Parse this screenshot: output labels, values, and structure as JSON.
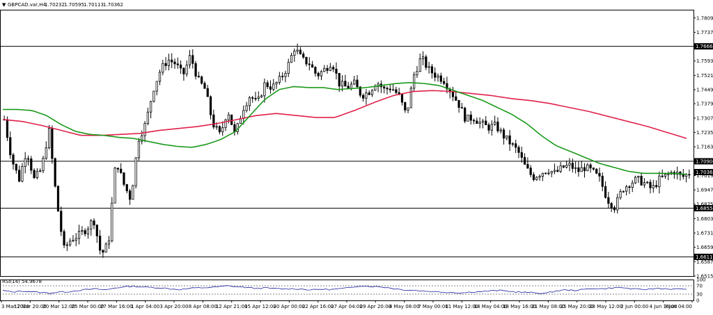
{
  "header": {
    "symbol_label": "GBPCAD.var,H4",
    "open": "1.70232",
    "high": "1.70595",
    "low": "1.70113",
    "close": "1.70362"
  },
  "colors": {
    "candle": "#000000",
    "ma_fast": "#1a9a1a",
    "ma_slow": "#e0204a",
    "hline": "#000000",
    "rsi_line": "#1c1c9c",
    "rsi_level": "#555555"
  },
  "chart_data": {
    "type": "candlestick",
    "y_ticks": [
      "1.78090",
      "1.77370",
      "1.75930",
      "1.75210",
      "1.74490",
      "1.73790",
      "1.73070",
      "1.72350",
      "1.71630",
      "1.70190",
      "1.69470",
      "1.68750",
      "1.68030",
      "1.67310",
      "1.66590",
      "1.65870",
      "1.65150"
    ],
    "ylim": [
      1.6515,
      1.785
    ],
    "x_ticks": [
      "3 Mar 2020",
      "17 Mar 20:00",
      "20 Mar 12:00",
      "25 Mar 00:00",
      "27 Mar 16:00",
      "1 Apr 04:00",
      "3 Apr 20:00",
      "8 Apr 08:00",
      "12 Apr 21:00",
      "15 Apr 12:00",
      "20 Apr 00:00",
      "22 Apr 16:00",
      "27 Apr 04:00",
      "29 Apr 20:00",
      "4 May 08:00",
      "7 May 00:00",
      "11 May 12:00",
      "14 May 04:00",
      "18 May 16:00",
      "21 May 08:00",
      "25 May 20:00",
      "28 May 12:00",
      "2 Jun 00:00",
      "4 Jun 16:00",
      "9 Jun 04:00"
    ],
    "horizontal_levels": [
      {
        "label": "1.76665",
        "value": 1.76665
      },
      {
        "label": "1.70904",
        "value": 1.70904
      },
      {
        "label": "1.68552",
        "value": 1.68552
      },
      {
        "label": "1.66113",
        "value": 1.66113
      }
    ],
    "current_price": {
      "label": "1.70362",
      "value": 1.70362
    },
    "price_path": [
      1.73,
      1.71,
      1.7,
      1.715,
      1.7,
      1.705,
      1.725,
      1.69,
      1.665,
      1.67,
      1.672,
      1.675,
      1.68,
      1.662,
      1.668,
      1.71,
      1.698,
      1.69,
      1.72,
      1.728,
      1.745,
      1.755,
      1.76,
      1.758,
      1.752,
      1.762,
      1.75,
      1.745,
      1.728,
      1.722,
      1.735,
      1.722,
      1.735,
      1.742,
      1.738,
      1.748,
      1.746,
      1.75,
      1.756,
      1.766,
      1.76,
      1.758,
      1.752,
      1.755,
      1.759,
      1.748,
      1.746,
      1.748,
      1.742,
      1.744,
      1.749,
      1.745,
      1.746,
      1.742,
      1.732,
      1.752,
      1.761,
      1.755,
      1.752,
      1.75,
      1.744,
      1.738,
      1.73,
      1.731,
      1.728,
      1.726,
      1.727,
      1.722,
      1.718,
      1.714,
      1.706,
      1.701,
      1.703,
      1.705,
      1.703,
      1.706,
      1.707,
      1.704,
      1.706,
      1.704,
      1.7,
      1.69,
      1.686,
      1.695,
      1.698,
      1.7,
      1.698,
      1.695,
      1.7,
      1.702,
      1.704,
      1.701,
      1.703
    ],
    "ma_fast_path": [
      1.735,
      1.735,
      1.7345,
      1.732,
      1.7275,
      1.724,
      1.7225,
      1.722,
      1.721,
      1.7205,
      1.719,
      1.7175,
      1.7165,
      1.716,
      1.7175,
      1.72,
      1.724,
      1.732,
      1.74,
      1.745,
      1.7465,
      1.746,
      1.746,
      1.745,
      1.7455,
      1.746,
      1.747,
      1.748,
      1.7485,
      1.748,
      1.747,
      1.7445,
      1.742,
      1.7395,
      1.736,
      1.7325,
      1.728,
      1.722,
      1.717,
      1.714,
      1.711,
      1.708,
      1.706,
      1.704,
      1.703,
      1.703,
      1.703,
      1.7025
    ],
    "ma_slow_path": [
      1.73,
      1.729,
      1.727,
      1.7245,
      1.722,
      1.722,
      1.7225,
      1.723,
      1.7245,
      1.7255,
      1.7265,
      1.728,
      1.73,
      1.732,
      1.733,
      1.732,
      1.731,
      1.731,
      1.7345,
      1.7385,
      1.742,
      1.744,
      1.7445,
      1.744,
      1.743,
      1.742,
      1.7405,
      1.7395,
      1.738,
      1.736,
      1.734,
      1.7315,
      1.729,
      1.7265,
      1.7235,
      1.7205
    ],
    "rsi": {
      "label": "RSI(14) 54.9678",
      "period": 14,
      "value": 54.9678,
      "levels": [
        30,
        70
      ],
      "scale_labels": [
        "100",
        "70",
        "30",
        "0"
      ],
      "ylim": [
        0,
        100
      ],
      "path": [
        48,
        40,
        45,
        42,
        38,
        35,
        40,
        42,
        48,
        52,
        55,
        50,
        60,
        65,
        68,
        64,
        62,
        60,
        55,
        52,
        58,
        60,
        62,
        65,
        70,
        66,
        62,
        58,
        60,
        57,
        55,
        56,
        54,
        50,
        54,
        52,
        56,
        60,
        70,
        68,
        66,
        62,
        55,
        50,
        48,
        45,
        42,
        40,
        38,
        36,
        40,
        42,
        45,
        48,
        44,
        40,
        38,
        36,
        34,
        45,
        50,
        48,
        52,
        58,
        55,
        60,
        62,
        56,
        52,
        54,
        58,
        55,
        54,
        55
      ]
    }
  }
}
